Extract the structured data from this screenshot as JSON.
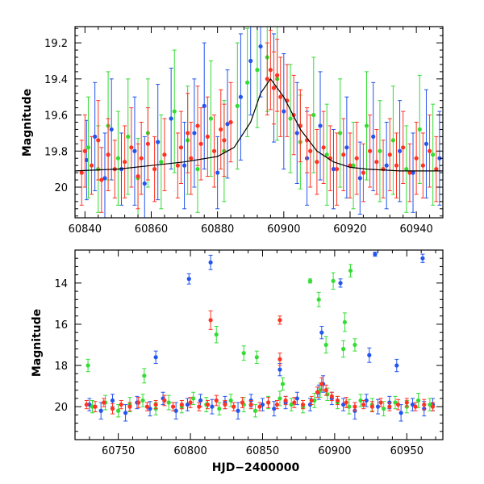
{
  "chart_data": [
    {
      "type": "scatter",
      "panel": "top",
      "xlabel": "",
      "ylabel": "Magnitude",
      "xlim": [
        60837,
        60948
      ],
      "ylim": [
        20.17,
        19.11
      ],
      "y_inverted": true,
      "xticks": [
        60840,
        60860,
        60880,
        60900,
        60920,
        60940
      ],
      "yticks": [
        19.2,
        19.4,
        19.6,
        19.8,
        20
      ],
      "ytick_labels": [
        "19.2",
        "19.4",
        "19.6",
        "19.8",
        "20"
      ],
      "model_curve": {
        "color": "#000000",
        "x": [
          60837,
          60850,
          60860,
          60870,
          60880,
          60885,
          60890,
          60893,
          60896,
          60900,
          60905,
          60910,
          60915,
          60920,
          60925,
          60935,
          60948
        ],
        "y": [
          19.91,
          19.9,
          19.88,
          19.86,
          19.83,
          19.78,
          19.64,
          19.48,
          19.4,
          19.5,
          19.68,
          19.8,
          19.86,
          19.89,
          19.9,
          19.91,
          19.91
        ]
      },
      "series": [
        {
          "color": "#2255ee",
          "x": [
            60840.5,
            60843,
            60846,
            60848,
            60851,
            60855,
            60858,
            60862,
            60866,
            60870,
            60873,
            60876,
            60880,
            60883,
            60887,
            60890,
            60893,
            60897,
            60900,
            60904,
            60907,
            60911,
            60915,
            60919,
            60923,
            60927,
            60931,
            60935,
            60939,
            60943,
            60947
          ],
          "y": [
            19.85,
            19.72,
            19.95,
            19.68,
            19.9,
            19.8,
            19.98,
            19.75,
            19.62,
            19.88,
            19.7,
            19.55,
            19.92,
            19.65,
            19.5,
            19.3,
            19.22,
            19.45,
            19.58,
            19.7,
            19.84,
            19.66,
            19.9,
            19.78,
            19.95,
            19.72,
            19.88,
            19.8,
            19.92,
            19.76,
            19.84
          ],
          "err": [
            0.22,
            0.3,
            0.25,
            0.28,
            0.2,
            0.3,
            0.26,
            0.32,
            0.28,
            0.24,
            0.3,
            0.35,
            0.2,
            0.3,
            0.35,
            0.3,
            0.28,
            0.3,
            0.32,
            0.28,
            0.26,
            0.3,
            0.22,
            0.28,
            0.2,
            0.3,
            0.24,
            0.28,
            0.22,
            0.3,
            0.26
          ]
        },
        {
          "color": "#33dd33",
          "x": [
            60841,
            60844,
            60847,
            60850,
            60853,
            60856,
            60859,
            60863,
            60867,
            60871,
            60874,
            60878,
            60882,
            60886,
            60889,
            60892,
            60895,
            60898,
            60902,
            60905,
            60909,
            60913,
            60917,
            60921,
            60925,
            60929,
            60933,
            60937,
            60941,
            60945
          ],
          "y": [
            19.78,
            19.9,
            19.66,
            19.84,
            19.72,
            19.95,
            19.7,
            19.86,
            19.58,
            19.74,
            19.9,
            19.62,
            19.8,
            19.55,
            19.42,
            19.35,
            19.28,
            19.4,
            19.62,
            19.75,
            19.6,
            19.82,
            19.7,
            19.88,
            19.66,
            19.8,
            19.74,
            19.9,
            19.68,
            19.82
          ],
          "err": [
            0.28,
            0.24,
            0.3,
            0.26,
            0.32,
            0.22,
            0.3,
            0.26,
            0.34,
            0.3,
            0.24,
            0.32,
            0.28,
            0.35,
            0.3,
            0.32,
            0.3,
            0.34,
            0.3,
            0.26,
            0.32,
            0.28,
            0.3,
            0.24,
            0.3,
            0.28,
            0.3,
            0.24,
            0.3,
            0.28
          ]
        },
        {
          "color": "#ff3322",
          "x": [
            60839,
            60840,
            60842,
            60844,
            60845,
            60847,
            60849,
            60852,
            60854,
            60856,
            60857,
            60859,
            60861,
            60864,
            60868,
            60869,
            60871,
            60872,
            60874,
            60875,
            60877,
            60879,
            60881,
            60882,
            60884,
            60895,
            60896,
            60897,
            60898,
            60899,
            60901,
            60903,
            60905,
            60907,
            60908,
            60910,
            60912,
            60914,
            60916,
            60918,
            60920,
            60922,
            60924,
            60926,
            60928,
            60930,
            60932,
            60934,
            60936,
            60938,
            60940,
            60942,
            60944,
            60946
          ],
          "y": [
            19.92,
            19.8,
            19.88,
            19.74,
            19.96,
            19.82,
            19.9,
            19.86,
            19.78,
            19.94,
            19.84,
            19.76,
            19.9,
            19.82,
            19.88,
            19.78,
            19.7,
            19.84,
            19.66,
            19.76,
            19.72,
            19.8,
            19.68,
            19.74,
            19.64,
            19.4,
            19.35,
            19.45,
            19.38,
            19.5,
            19.52,
            19.6,
            19.66,
            19.74,
            19.8,
            19.86,
            19.78,
            19.84,
            19.9,
            19.82,
            19.88,
            19.84,
            19.92,
            19.8,
            19.86,
            19.9,
            19.82,
            19.88,
            19.78,
            19.92,
            19.84,
            19.88,
            19.8,
            19.9
          ],
          "err": [
            0.18,
            0.2,
            0.16,
            0.22,
            0.18,
            0.2,
            0.16,
            0.2,
            0.22,
            0.18,
            0.2,
            0.2,
            0.18,
            0.2,
            0.18,
            0.2,
            0.22,
            0.2,
            0.22,
            0.2,
            0.22,
            0.2,
            0.22,
            0.2,
            0.22,
            0.2,
            0.22,
            0.2,
            0.2,
            0.22,
            0.2,
            0.22,
            0.2,
            0.18,
            0.2,
            0.18,
            0.2,
            0.18,
            0.2,
            0.2,
            0.18,
            0.2,
            0.16,
            0.2,
            0.18,
            0.16,
            0.2,
            0.18,
            0.2,
            0.16,
            0.2,
            0.18,
            0.2,
            0.18
          ]
        }
      ]
    },
    {
      "type": "scatter",
      "panel": "bottom",
      "xlabel": "HJD−2400000",
      "ylabel": "Magnitude",
      "xlim": [
        60720,
        60975
      ],
      "ylim": [
        21.6,
        12.4
      ],
      "y_inverted": true,
      "xticks": [
        60750,
        60800,
        60850,
        60900,
        60950
      ],
      "yticks": [
        14,
        16,
        18,
        20
      ],
      "ytick_labels": [
        "14",
        "16",
        "18",
        "20"
      ],
      "series": [
        {
          "color": "#2255ee",
          "x": [
            60730,
            60738,
            60746,
            60755,
            60763,
            60772,
            60781,
            60790,
            60798,
            60807,
            60815,
            60824,
            60833,
            60842,
            60850,
            60858,
            60866,
            60874,
            60883,
            60889,
            60892,
            60898,
            60906,
            60914,
            60922,
            60930,
            60938,
            60946,
            60954,
            60962,
            60968,
            60799,
            60814,
            60891,
            60904,
            60928,
            60961,
            60776,
            60862,
            60924,
            60943
          ],
          "y": [
            19.9,
            20.2,
            19.7,
            20.3,
            19.8,
            20.1,
            19.6,
            20.2,
            19.9,
            19.7,
            20.0,
            19.8,
            20.2,
            19.7,
            19.9,
            20.1,
            19.8,
            19.6,
            19.9,
            19.3,
            18.9,
            19.6,
            19.9,
            20.2,
            19.7,
            20.0,
            19.8,
            20.3,
            19.9,
            20.1,
            19.9,
            13.8,
            13.0,
            16.4,
            14.0,
            12.6,
            12.8,
            17.6,
            18.2,
            17.5,
            18.0
          ],
          "err": [
            0.3,
            0.4,
            0.3,
            0.4,
            0.3,
            0.35,
            0.3,
            0.4,
            0.3,
            0.3,
            0.35,
            0.3,
            0.4,
            0.3,
            0.3,
            0.35,
            0.3,
            0.3,
            0.3,
            0.35,
            0.4,
            0.3,
            0.3,
            0.4,
            0.3,
            0.35,
            0.3,
            0.4,
            0.3,
            0.35,
            0.3,
            0.25,
            0.35,
            0.3,
            0.2,
            0.1,
            0.2,
            0.3,
            0.3,
            0.35,
            0.3
          ]
        },
        {
          "color": "#33dd33",
          "x": [
            60732,
            60741,
            60750,
            60758,
            60767,
            60776,
            60785,
            60794,
            60802,
            60811,
            60820,
            60828,
            60837,
            60845,
            60854,
            60862,
            60870,
            60878,
            60886,
            60890,
            60895,
            60902,
            60910,
            60918,
            60926,
            60934,
            60942,
            60950,
            60958,
            60966,
            60729,
            60768,
            60818,
            60837,
            60846,
            60864,
            60883,
            60889,
            60894,
            60899,
            60907,
            60911,
            60906,
            60914
          ],
          "y": [
            20.0,
            19.8,
            20.2,
            19.9,
            19.7,
            20.1,
            19.8,
            20.0,
            19.6,
            19.9,
            20.1,
            19.7,
            19.9,
            20.2,
            19.8,
            19.6,
            19.9,
            20.0,
            19.7,
            19.2,
            19.4,
            19.8,
            20.0,
            19.7,
            19.9,
            20.1,
            19.8,
            20.0,
            19.7,
            19.9,
            18.0,
            18.5,
            16.5,
            17.4,
            17.6,
            18.9,
            13.9,
            14.8,
            17.0,
            13.9,
            15.9,
            13.4,
            17.2,
            17.0
          ],
          "err": [
            0.3,
            0.35,
            0.3,
            0.35,
            0.3,
            0.3,
            0.35,
            0.3,
            0.3,
            0.35,
            0.3,
            0.3,
            0.35,
            0.3,
            0.3,
            0.35,
            0.3,
            0.3,
            0.35,
            0.35,
            0.3,
            0.3,
            0.35,
            0.3,
            0.3,
            0.35,
            0.3,
            0.3,
            0.35,
            0.3,
            0.3,
            0.35,
            0.4,
            0.35,
            0.3,
            0.3,
            0.1,
            0.35,
            0.4,
            0.4,
            0.45,
            0.3,
            0.4,
            0.3
          ]
        },
        {
          "color": "#ff3322",
          "x": [
            60728,
            60734,
            60740,
            60746,
            60752,
            60758,
            60764,
            60770,
            60776,
            60782,
            60788,
            60794,
            60800,
            60806,
            60812,
            60818,
            60824,
            60830,
            60836,
            60842,
            60848,
            60854,
            60860,
            60866,
            60872,
            60878,
            60884,
            60888,
            60891,
            60894,
            60898,
            60902,
            60908,
            60914,
            60920,
            60926,
            60932,
            60938,
            60944,
            60950,
            60956,
            60962,
            60968,
            60814,
            60862,
            60862
          ],
          "y": [
            19.9,
            20.0,
            19.8,
            20.1,
            19.9,
            20.0,
            19.8,
            20.0,
            19.9,
            19.7,
            20.0,
            19.9,
            19.8,
            20.0,
            19.9,
            19.7,
            19.9,
            20.0,
            19.8,
            19.9,
            20.0,
            19.8,
            19.9,
            19.7,
            19.8,
            19.9,
            19.7,
            19.3,
            18.9,
            19.2,
            19.5,
            19.7,
            19.8,
            20.0,
            19.9,
            20.0,
            19.8,
            20.0,
            19.9,
            19.8,
            20.0,
            19.9,
            20.0,
            15.8,
            15.8,
            17.7
          ],
          "err": [
            0.2,
            0.25,
            0.2,
            0.25,
            0.2,
            0.2,
            0.25,
            0.2,
            0.2,
            0.25,
            0.2,
            0.2,
            0.25,
            0.2,
            0.2,
            0.25,
            0.2,
            0.2,
            0.25,
            0.2,
            0.2,
            0.25,
            0.2,
            0.2,
            0.25,
            0.2,
            0.2,
            0.25,
            0.3,
            0.25,
            0.2,
            0.2,
            0.25,
            0.2,
            0.2,
            0.25,
            0.2,
            0.2,
            0.25,
            0.2,
            0.2,
            0.25,
            0.2,
            0.45,
            0.2,
            0.3
          ]
        }
      ]
    }
  ]
}
